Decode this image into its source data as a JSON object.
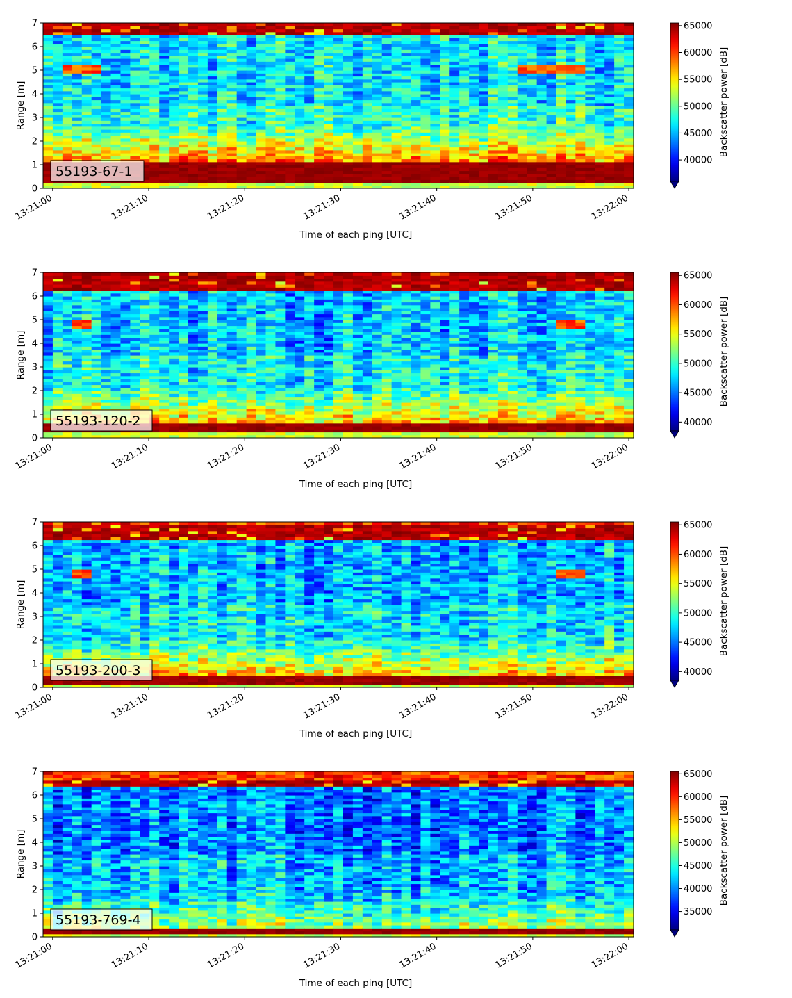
{
  "chart_data": [
    {
      "type": "heatmap",
      "panel_label": "55193-67-1",
      "xlabel": "Time of each ping [UTC]",
      "ylabel": "Range [m]",
      "xlim": [
        "13:20:59",
        "13:22:00.5"
      ],
      "ylim": [
        0,
        7
      ],
      "xticks": [
        "13:21:00",
        "13:21:10",
        "13:21:20",
        "13:21:30",
        "13:21:40",
        "13:21:50",
        "13:22:00"
      ],
      "yticks": [
        0,
        1,
        2,
        3,
        4,
        5,
        6,
        7
      ],
      "colorbar": {
        "label": "Backscatter power [dB]",
        "colormap": "jet",
        "extend": "min",
        "vmin": 36000,
        "vmax": 65500,
        "ticks": [
          40000,
          45000,
          50000,
          55000,
          60000,
          65000
        ]
      },
      "features": {
        "bottom_band_m": [
          0.25,
          1.1
        ],
        "top_band_m": [
          6.5,
          7.0
        ],
        "mid_level": 0.42,
        "strong_near_field": 0.75,
        "echo_layer": {
          "range_m": 5.1,
          "time_s": [
            [
              1,
              5
            ],
            [
              48,
              55
            ]
          ]
        }
      }
    },
    {
      "type": "heatmap",
      "panel_label": "55193-120-2",
      "xlabel": "Time of each ping [UTC]",
      "ylabel": "Range [m]",
      "xlim": [
        "13:20:59",
        "13:22:00.5"
      ],
      "ylim": [
        0,
        7
      ],
      "xticks": [
        "13:21:00",
        "13:21:10",
        "13:21:20",
        "13:21:30",
        "13:21:40",
        "13:21:50",
        "13:22:00"
      ],
      "yticks": [
        0,
        1,
        2,
        3,
        4,
        5,
        6,
        7
      ],
      "colorbar": {
        "label": "Backscatter power [dB]",
        "colormap": "jet",
        "extend": "min",
        "vmin": 38500,
        "vmax": 65500,
        "ticks": [
          40000,
          45000,
          50000,
          55000,
          60000,
          65000
        ]
      },
      "features": {
        "bottom_band_m": [
          0.2,
          0.6
        ],
        "top_band_m": [
          6.3,
          7.0
        ],
        "mid_level": 0.38,
        "strong_near_field": 0.7,
        "echo_layer": {
          "range_m": 4.8,
          "time_s": [
            [
              2,
              4
            ],
            [
              52,
              55
            ]
          ]
        }
      }
    },
    {
      "type": "heatmap",
      "panel_label": "55193-200-3",
      "xlabel": "Time of each ping [UTC]",
      "ylabel": "Range [m]",
      "xlim": [
        "13:20:59",
        "13:22:00.5"
      ],
      "ylim": [
        0,
        7
      ],
      "xticks": [
        "13:21:00",
        "13:21:10",
        "13:21:20",
        "13:21:30",
        "13:21:40",
        "13:21:50",
        "13:22:00"
      ],
      "yticks": [
        0,
        1,
        2,
        3,
        4,
        5,
        6,
        7
      ],
      "colorbar": {
        "label": "Backscatter power [dB]",
        "colormap": "jet",
        "extend": "min",
        "vmin": 38500,
        "vmax": 65500,
        "ticks": [
          40000,
          45000,
          50000,
          55000,
          60000,
          65000
        ]
      },
      "features": {
        "bottom_band_m": [
          0.15,
          0.5
        ],
        "top_band_m": [
          6.3,
          6.9
        ],
        "mid_level": 0.36,
        "strong_near_field": 0.68,
        "echo_layer": {
          "range_m": 4.8,
          "time_s": [
            [
              2,
              4
            ],
            [
              52,
              55
            ]
          ]
        }
      }
    },
    {
      "type": "heatmap",
      "panel_label": "55193-769-4",
      "xlabel": "Time of each ping [UTC]",
      "ylabel": "Range [m]",
      "xlim": [
        "13:20:59",
        "13:22:00.5"
      ],
      "ylim": [
        0,
        7
      ],
      "xticks": [
        "13:21:00",
        "13:21:10",
        "13:21:20",
        "13:21:30",
        "13:21:40",
        "13:21:50",
        "13:22:00"
      ],
      "yticks": [
        0,
        1,
        2,
        3,
        4,
        5,
        6,
        7
      ],
      "colorbar": {
        "label": "Backscatter power [dB]",
        "colormap": "jet",
        "extend": "min",
        "vmin": 31000,
        "vmax": 65500,
        "ticks": [
          35000,
          40000,
          45000,
          50000,
          55000,
          60000,
          65000
        ]
      },
      "features": {
        "bottom_band_m": [
          0.15,
          0.35
        ],
        "top_band_m": [
          6.4,
          6.6
        ],
        "mid_level": 0.3,
        "strong_near_field": 0.55,
        "echo_layer": null
      }
    }
  ]
}
